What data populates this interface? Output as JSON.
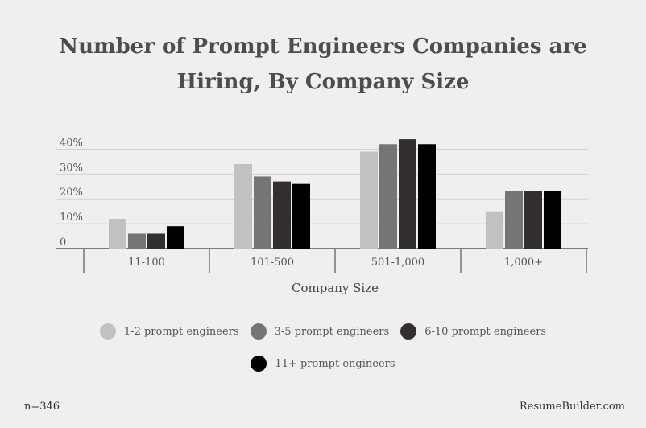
{
  "chart_data": {
    "type": "bar",
    "title_lines": [
      "Number of Prompt Engineers Companies are",
      "Hiring, By Company Size"
    ],
    "xlabel": "Company Size",
    "categories": [
      "11-100",
      "101-500",
      "501-1,000",
      "1,000+"
    ],
    "ylim": [
      0,
      45
    ],
    "yticks": [
      0,
      10,
      20,
      30,
      40
    ],
    "ytick_labels": [
      "0",
      "10%",
      "20%",
      "30%",
      "40%"
    ],
    "grid": true,
    "legend_position": "bottom",
    "series": [
      {
        "name": "1-2 prompt engineers",
        "color": "#c2c0c0",
        "values": [
          12,
          34,
          39,
          15
        ]
      },
      {
        "name": "3-5 prompt engineers",
        "color": "#767474",
        "values": [
          6,
          29,
          42,
          23
        ]
      },
      {
        "name": "6-10 prompt engineers",
        "color": "#332f2f",
        "values": [
          6,
          27,
          44,
          23
        ]
      },
      {
        "name": "11+ prompt engineers",
        "color": "#000000",
        "values": [
          9,
          26,
          42,
          23
        ]
      }
    ]
  },
  "footer": {
    "sample": "n=346",
    "source": "ResumeBuilder.com"
  }
}
